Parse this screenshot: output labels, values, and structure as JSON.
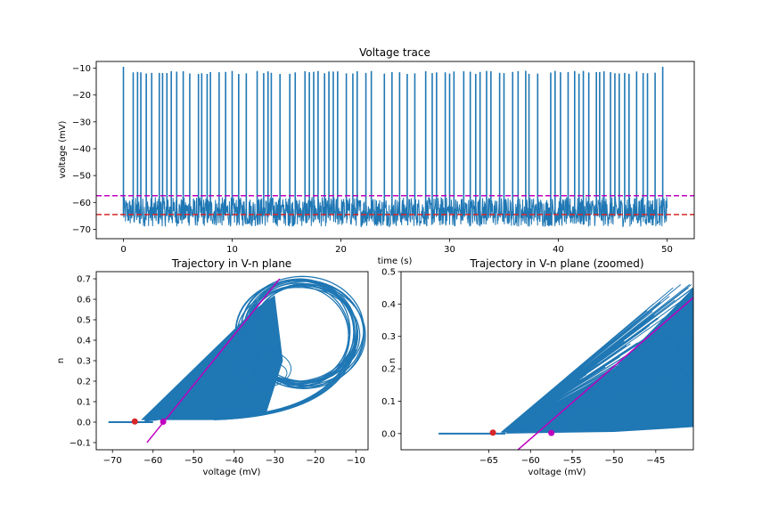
{
  "chart_data": [
    {
      "type": "line",
      "title": "Voltage trace",
      "xlabel": "time (s)",
      "ylabel": "voltage (mV)",
      "xlim": [
        -2.5,
        52.5
      ],
      "ylim": [
        -73.5,
        -7.5
      ],
      "xticks": [
        0,
        10,
        20,
        30,
        40,
        50
      ],
      "yticks": [
        -70,
        -60,
        -50,
        -40,
        -30,
        -20,
        -10
      ],
      "grid": false,
      "series": [
        {
          "color": "#1f77b4",
          "description_values": {
            "t_start": 0,
            "t_end": 50,
            "resting_band_min": -69,
            "resting_band_max": -58,
            "spike_peak_approx": -11,
            "spike_times_approx": [
              0.0,
              0.9,
              1.3,
              1.6,
              2.1,
              2.6,
              3.3,
              3.6,
              4.0,
              4.4,
              4.9,
              5.5,
              6.1,
              6.9,
              7.2,
              7.7,
              8.0,
              8.8,
              9.4,
              10.0,
              10.6,
              11.3,
              12.3,
              12.9,
              13.3,
              13.6,
              14.4,
              15.3,
              15.8,
              16.7,
              17.1,
              17.5,
              17.9,
              18.5,
              18.9,
              19.3,
              19.7,
              20.5,
              21.1,
              21.5,
              22.3,
              22.8,
              24.0,
              24.7,
              25.4,
              26.1,
              26.8,
              27.8,
              28.4,
              28.8,
              29.6,
              30.0,
              30.4,
              31.3,
              31.9,
              32.4,
              32.8,
              33.4,
              33.8,
              34.6,
              35.0,
              35.8,
              36.3,
              37.0,
              37.3,
              38.1,
              39.3,
              39.7,
              40.2,
              40.9,
              41.5,
              41.9,
              42.3,
              42.8,
              43.5,
              43.8,
              44.2,
              44.8,
              45.2,
              45.6,
              46.1,
              46.5,
              47.2,
              47.8,
              48.2,
              48.9,
              49.6
            ]
          }
        }
      ],
      "hlines": [
        {
          "y": -57.5,
          "color": "#bf00bf",
          "style": "dashed"
        },
        {
          "y": -64.5,
          "color": "#d62728",
          "style": "dashed"
        }
      ]
    },
    {
      "type": "line",
      "title": "Trajectory in V-n plane",
      "xlabel": "voltage (mV)",
      "ylabel": "n",
      "xlim": [
        -74,
        -7
      ],
      "ylim": [
        -0.135,
        0.735
      ],
      "xticks": [
        -70,
        -60,
        -50,
        -40,
        -30,
        -20,
        -10
      ],
      "yticks": [
        -0.1,
        0.0,
        0.1,
        0.2,
        0.3,
        0.4,
        0.5,
        0.6,
        0.7
      ],
      "grid": false,
      "trajectory": {
        "color": "#1f77b4",
        "v_min": -71,
        "v_max": -10,
        "n_min": 0.0,
        "n_max": 0.68
      },
      "nullcline_line": {
        "color": "#bf00bf",
        "x": [
          -61.5,
          -28.8
        ],
        "y": [
          -0.1,
          0.7
        ]
      },
      "points": [
        {
          "x": -64.5,
          "y": 0.003,
          "color": "#d62728"
        },
        {
          "x": -57.5,
          "y": 0.002,
          "color": "#bf00bf"
        }
      ]
    },
    {
      "type": "line",
      "title": "Trajectory in V-n plane (zoomed)",
      "xlabel": "voltage (mV)",
      "ylabel": "n",
      "xlim": [
        -75.5,
        -40.5
      ],
      "ylim": [
        -0.05,
        0.5
      ],
      "xticks": [
        -65,
        -60,
        -55,
        -50,
        -45
      ],
      "yticks": [
        0.0,
        0.1,
        0.2,
        0.3,
        0.4,
        0.5
      ],
      "grid": false,
      "trajectory": {
        "color": "#1f77b4"
      },
      "nullcline_line": {
        "color": "#bf00bf",
        "x": [
          -61.5,
          -40.5
        ],
        "y": [
          -0.05,
          0.42
        ]
      },
      "points": [
        {
          "x": -64.5,
          "y": 0.003,
          "color": "#d62728"
        },
        {
          "x": -57.5,
          "y": 0.002,
          "color": "#bf00bf"
        }
      ]
    }
  ]
}
